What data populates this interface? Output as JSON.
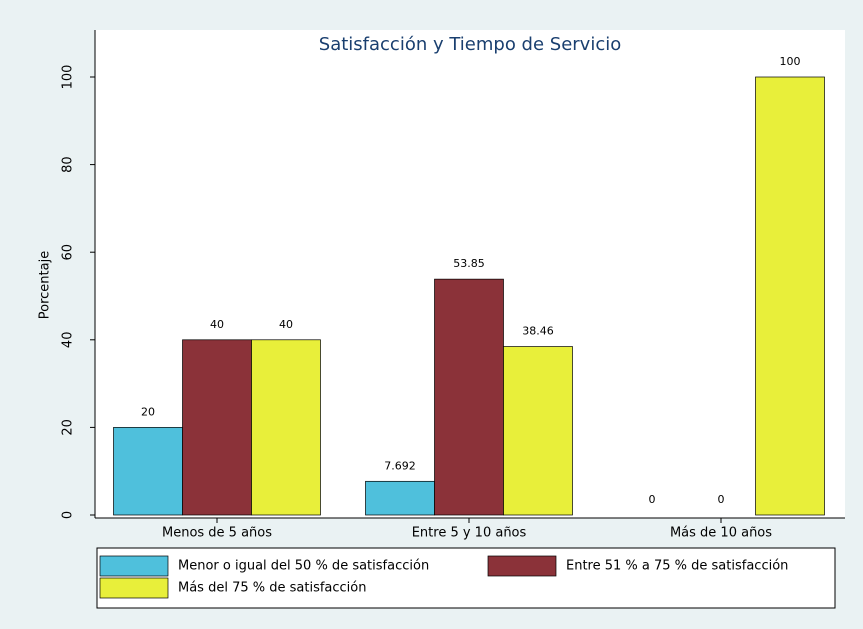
{
  "chart_data": {
    "type": "bar",
    "title": "Satisfacción y Tiempo de Servicio",
    "y_label": "Porcentaje",
    "categories": [
      "Menos de 5 años",
      "Entre 5 y 10 años",
      "Más de 10 años"
    ],
    "series": [
      {
        "name": "Menor o igual del 50 % de satisfacción",
        "color": "#4fc0dc",
        "values": [
          20,
          7.692,
          0
        ]
      },
      {
        "name": "Entre 51 % a 75 % de satisfacción",
        "color": "#8b3239",
        "values": [
          40,
          53.85,
          0
        ]
      },
      {
        "name": "Más del 75 % de satisfacción",
        "color": "#e8ef3a",
        "values": [
          40,
          38.46,
          100
        ]
      }
    ],
    "ylim": [
      0,
      100
    ],
    "yticks": [
      0,
      20,
      40,
      60,
      80,
      100
    ],
    "grid": false,
    "legend": "bottom"
  }
}
